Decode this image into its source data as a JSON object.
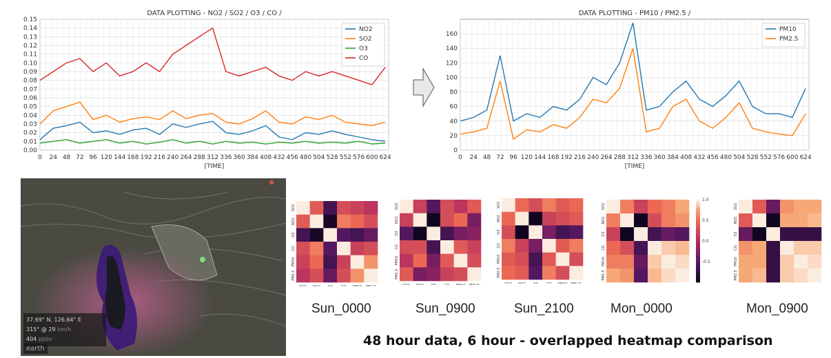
{
  "chart_data": [
    {
      "type": "line",
      "title": "DATA PLOTTING - NO2 / SO2 / O3 / CO /",
      "xlabel": "[TIME]",
      "ylabel": "",
      "xlim": [
        0,
        630
      ],
      "ylim": [
        0,
        0.15
      ],
      "xticks": [
        0,
        24,
        48,
        72,
        96,
        120,
        144,
        168,
        192,
        216,
        240,
        264,
        288,
        312,
        336,
        360,
        384,
        408,
        432,
        456,
        480,
        504,
        528,
        552,
        576,
        600,
        624
      ],
      "yticks": [
        0.0,
        0.01,
        0.02,
        0.03,
        0.04,
        0.05,
        0.06,
        0.07,
        0.08,
        0.09,
        0.1,
        0.11,
        0.12,
        0.13,
        0.14,
        0.15
      ],
      "grid": true,
      "legend": "top-right",
      "series": [
        {
          "name": "NO2",
          "color": "#1f77b4",
          "x": [
            0,
            24,
            48,
            72,
            96,
            120,
            144,
            168,
            192,
            216,
            240,
            264,
            288,
            312,
            336,
            360,
            384,
            408,
            432,
            456,
            480,
            504,
            528,
            552,
            576,
            600,
            624
          ],
          "values": [
            0.012,
            0.025,
            0.028,
            0.032,
            0.02,
            0.022,
            0.018,
            0.023,
            0.025,
            0.018,
            0.03,
            0.026,
            0.03,
            0.033,
            0.02,
            0.018,
            0.022,
            0.028,
            0.015,
            0.012,
            0.02,
            0.018,
            0.022,
            0.018,
            0.015,
            0.012,
            0.01
          ]
        },
        {
          "name": "SO2",
          "color": "#ff7f0e",
          "x": [
            0,
            24,
            48,
            72,
            96,
            120,
            144,
            168,
            192,
            216,
            240,
            264,
            288,
            312,
            336,
            360,
            384,
            408,
            432,
            456,
            480,
            504,
            528,
            552,
            576,
            600,
            624
          ],
          "values": [
            0.03,
            0.045,
            0.05,
            0.055,
            0.035,
            0.04,
            0.032,
            0.036,
            0.038,
            0.035,
            0.045,
            0.036,
            0.04,
            0.042,
            0.032,
            0.03,
            0.036,
            0.045,
            0.032,
            0.03,
            0.038,
            0.035,
            0.04,
            0.032,
            0.03,
            0.028,
            0.032
          ]
        },
        {
          "name": "O3",
          "color": "#2ca02c",
          "x": [
            0,
            24,
            48,
            72,
            96,
            120,
            144,
            168,
            192,
            216,
            240,
            264,
            288,
            312,
            336,
            360,
            384,
            408,
            432,
            456,
            480,
            504,
            528,
            552,
            576,
            600,
            624
          ],
          "values": [
            0.008,
            0.01,
            0.012,
            0.008,
            0.01,
            0.012,
            0.008,
            0.01,
            0.007,
            0.009,
            0.012,
            0.008,
            0.01,
            0.007,
            0.01,
            0.008,
            0.009,
            0.007,
            0.009,
            0.008,
            0.01,
            0.008,
            0.009,
            0.008,
            0.01,
            0.007,
            0.008
          ]
        },
        {
          "name": "CO",
          "color": "#d62728",
          "x": [
            0,
            24,
            48,
            72,
            96,
            120,
            144,
            168,
            192,
            216,
            240,
            264,
            288,
            312,
            336,
            360,
            384,
            408,
            432,
            456,
            480,
            504,
            528,
            552,
            576,
            600,
            624
          ],
          "values": [
            0.08,
            0.09,
            0.1,
            0.105,
            0.09,
            0.1,
            0.085,
            0.09,
            0.1,
            0.09,
            0.11,
            0.12,
            0.13,
            0.14,
            0.09,
            0.085,
            0.09,
            0.095,
            0.085,
            0.08,
            0.09,
            0.085,
            0.09,
            0.085,
            0.08,
            0.075,
            0.095
          ]
        }
      ]
    },
    {
      "type": "line",
      "title": "DATA PLOTTING - PM10 / PM2.5 /",
      "xlabel": "[TIME]",
      "ylabel": "",
      "xlim": [
        0,
        630
      ],
      "ylim": [
        0,
        180
      ],
      "xticks": [
        0,
        24,
        48,
        72,
        96,
        120,
        144,
        168,
        192,
        216,
        240,
        264,
        288,
        312,
        336,
        360,
        384,
        408,
        432,
        456,
        480,
        504,
        528,
        552,
        576,
        600,
        624
      ],
      "yticks": [
        0,
        20,
        40,
        60,
        80,
        100,
        120,
        140,
        160
      ],
      "grid": true,
      "legend": "top-right",
      "series": [
        {
          "name": "PM10",
          "color": "#1f77b4",
          "x": [
            0,
            24,
            48,
            72,
            96,
            120,
            144,
            168,
            192,
            216,
            240,
            264,
            288,
            312,
            336,
            360,
            384,
            408,
            432,
            456,
            480,
            504,
            528,
            552,
            576,
            600,
            624
          ],
          "values": [
            40,
            45,
            55,
            130,
            40,
            50,
            45,
            60,
            55,
            70,
            100,
            90,
            120,
            175,
            55,
            60,
            80,
            95,
            70,
            60,
            75,
            95,
            60,
            50,
            50,
            45,
            85
          ]
        },
        {
          "name": "PM2.5",
          "color": "#ff7f0e",
          "x": [
            0,
            24,
            48,
            72,
            96,
            120,
            144,
            168,
            192,
            216,
            240,
            264,
            288,
            312,
            336,
            360,
            384,
            408,
            432,
            456,
            480,
            504,
            528,
            552,
            576,
            600,
            624
          ],
          "values": [
            22,
            25,
            30,
            95,
            15,
            28,
            25,
            35,
            30,
            45,
            70,
            65,
            85,
            140,
            25,
            30,
            60,
            70,
            40,
            30,
            45,
            65,
            30,
            25,
            22,
            20,
            50
          ]
        }
      ]
    },
    {
      "type": "heatmap",
      "name": "Sun_0000",
      "labels": [
        "SO2",
        "NO2",
        "O3",
        "CO",
        "PM10",
        "PM2.5"
      ],
      "values": [
        [
          1,
          0.4,
          -0.6,
          0.3,
          0.2,
          0.1
        ],
        [
          0.4,
          1,
          -0.9,
          0.6,
          0.5,
          0.3
        ],
        [
          -0.6,
          -0.9,
          1,
          -0.5,
          -0.6,
          -0.4
        ],
        [
          0.3,
          0.6,
          -0.5,
          1,
          0.2,
          0.3
        ],
        [
          0.2,
          0.5,
          -0.6,
          0.2,
          1,
          0.7
        ],
        [
          0.1,
          0.3,
          -0.4,
          0.3,
          0.7,
          1
        ]
      ]
    },
    {
      "type": "heatmap",
      "name": "Sun_0900",
      "labels": [
        "SO2",
        "NO2",
        "O3",
        "CO",
        "PM10",
        "PM2.5"
      ],
      "values": [
        [
          1,
          0.2,
          -0.5,
          0.3,
          0.1,
          0.4
        ],
        [
          0.2,
          1,
          -0.95,
          0.3,
          0.5,
          -0.3
        ],
        [
          -0.5,
          -0.95,
          1,
          -0.6,
          -0.3,
          -0.2
        ],
        [
          0.3,
          0.3,
          -0.6,
          1,
          0.4,
          0.2
        ],
        [
          0.1,
          0.5,
          -0.3,
          0.4,
          1,
          0.3
        ],
        [
          0.4,
          -0.3,
          -0.2,
          0.2,
          0.3,
          1
        ]
      ]
    },
    {
      "type": "heatmap",
      "name": "Sun_2100",
      "labels": [
        "SO2",
        "NO2",
        "O3",
        "CO",
        "PM10",
        "PM2.5"
      ],
      "values": [
        [
          1,
          0.5,
          0.3,
          0.6,
          0.4,
          0.5
        ],
        [
          0.5,
          1,
          -0.95,
          0.2,
          0.3,
          0.4
        ],
        [
          0.3,
          -0.95,
          1,
          -0.3,
          -0.6,
          -0.5
        ],
        [
          0.6,
          0.2,
          -0.3,
          1,
          0.4,
          0.6
        ],
        [
          0.4,
          0.3,
          -0.6,
          0.4,
          1,
          0.3
        ],
        [
          0.5,
          0.4,
          -0.5,
          0.6,
          0.3,
          1
        ]
      ]
    },
    {
      "type": "heatmap",
      "name": "Mon_0000",
      "labels": [
        "SO2",
        "NO2",
        "O3",
        "CO",
        "PM10",
        "PM2.5"
      ],
      "values": [
        [
          1,
          0.6,
          0.2,
          0.5,
          0.6,
          0.8
        ],
        [
          0.6,
          1,
          -0.95,
          0.3,
          0.6,
          0.7
        ],
        [
          0.2,
          -0.95,
          1,
          -0.6,
          -0.4,
          -0.5
        ],
        [
          0.5,
          0.3,
          -0.6,
          1,
          0.9,
          0.85
        ],
        [
          0.6,
          0.6,
          -0.4,
          0.9,
          1,
          0.95
        ],
        [
          0.8,
          0.7,
          -0.5,
          0.85,
          0.95,
          1
        ]
      ]
    },
    {
      "type": "heatmap",
      "name": "Mon_0900",
      "labels": [
        "SO2",
        "NO2",
        "O3",
        "CO",
        "PM10",
        "PM2.5"
      ],
      "values": [
        [
          1,
          0.4,
          -0.4,
          0.7,
          0.8,
          0.8
        ],
        [
          0.4,
          1,
          -0.95,
          0.8,
          0.8,
          0.85
        ],
        [
          -0.4,
          -0.95,
          1,
          -0.7,
          -0.7,
          -0.7
        ],
        [
          0.7,
          0.8,
          -0.7,
          1,
          0.9,
          0.9
        ],
        [
          0.8,
          0.8,
          -0.7,
          0.9,
          1,
          0.95
        ],
        [
          0.8,
          0.85,
          -0.7,
          0.9,
          0.95,
          1
        ]
      ]
    }
  ],
  "colorbar": {
    "ticks": [
      "1.0",
      "0.5",
      "0.0",
      "-0.5"
    ]
  },
  "captions": {
    "sun_0000": "Sun_0000",
    "sun_0900": "Sun_0900",
    "sun_2100": "Sun_2100",
    "mon_0000": "Mon_0000",
    "mon_0900": "Mon_0900",
    "main": "48 hour data, 6 hour - overlapped heatmap comparison"
  },
  "map": {
    "coords": "37.69° N, 126.64° E",
    "wind": "315° @ 29",
    "wind_unit": "km/h",
    "value": "404",
    "value_unit": "ppbv",
    "brand": "earth"
  },
  "colors": {
    "arrow": "#e8e8e8",
    "map_bg": "#4a4a42",
    "plume": "#3a1a78"
  }
}
